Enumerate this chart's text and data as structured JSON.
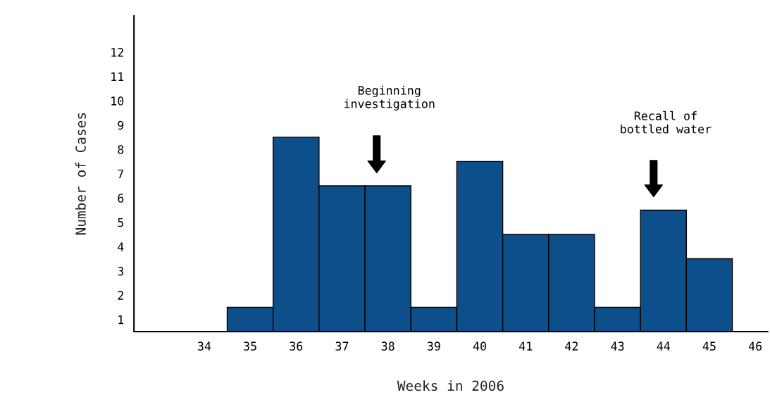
{
  "chart_data": {
    "type": "bar",
    "xlabel": "Weeks in 2006",
    "ylabel": "Number of Cases",
    "categories": [
      "34",
      "35",
      "36",
      "37",
      "38",
      "39",
      "40",
      "41",
      "42",
      "43",
      "44",
      "45",
      "46"
    ],
    "values": [
      null,
      1,
      8,
      6,
      6,
      1,
      7,
      4,
      4,
      1,
      5,
      3,
      null
    ],
    "color": "#0d4f8b",
    "ylim": [
      0,
      13
    ],
    "yticks": [
      {
        "value": 0.5,
        "label": "1"
      },
      {
        "value": 1.5,
        "label": "2"
      },
      {
        "value": 2.5,
        "label": "3"
      },
      {
        "value": 3.5,
        "label": "4"
      },
      {
        "value": 4.5,
        "label": "5"
      },
      {
        "value": 5.5,
        "label": "6"
      },
      {
        "value": 6.5,
        "label": "7"
      },
      {
        "value": 7.5,
        "label": "8"
      },
      {
        "value": 8.5,
        "label": "9"
      },
      {
        "value": 9.5,
        "label": "10"
      },
      {
        "value": 10.5,
        "label": "11"
      },
      {
        "value": 11.5,
        "label": "12"
      }
    ],
    "annotations": [
      "Beginning\ninvestigation",
      "Recall of\nbottled water"
    ],
    "grid": false,
    "legend": false
  }
}
